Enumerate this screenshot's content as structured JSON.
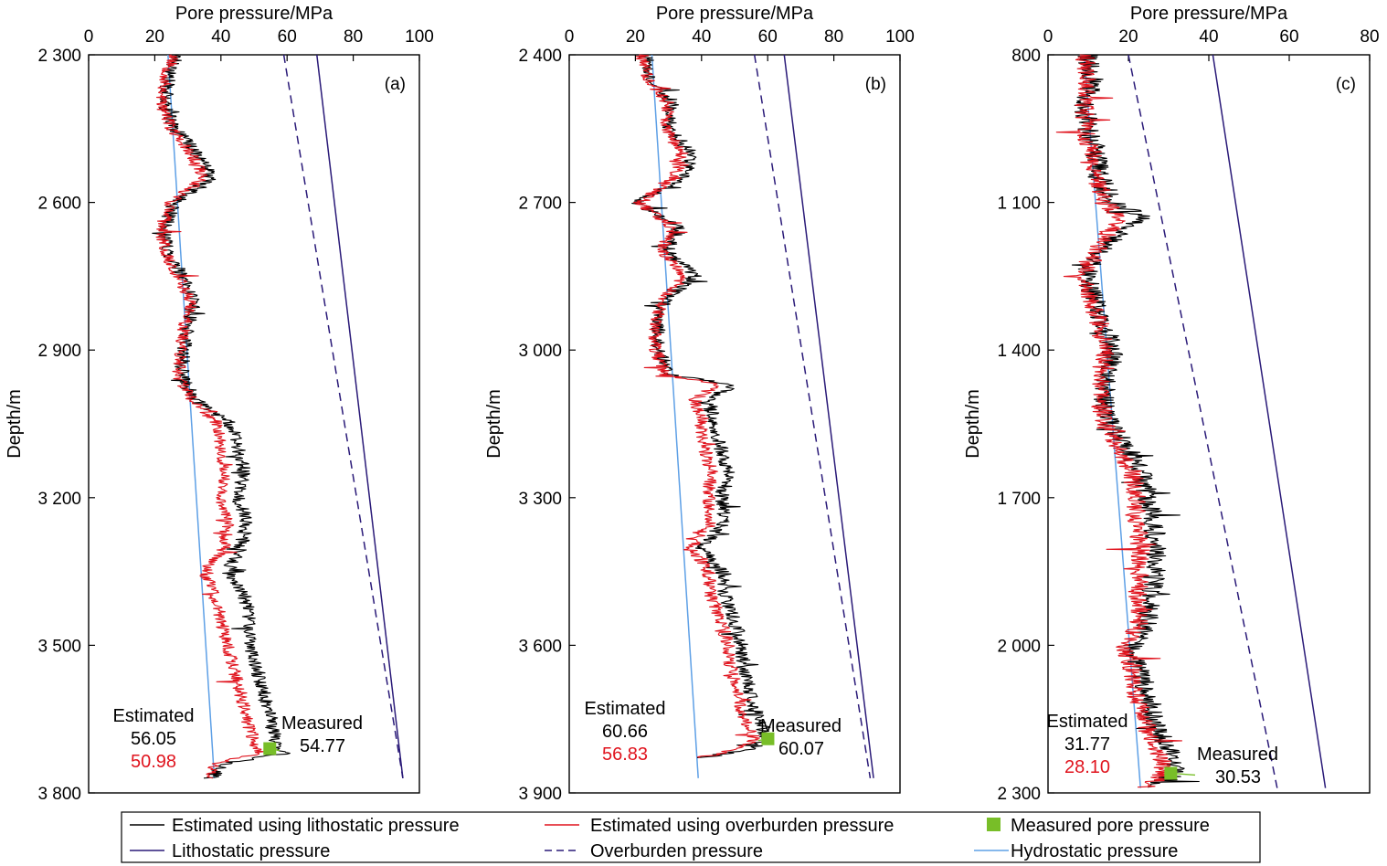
{
  "colors": {
    "estimated_lithostatic": "#000000",
    "estimated_overburden": "#e0141e",
    "measured": "#78be28",
    "lithostatic": "#2a1a78",
    "overburden": "#2a1a78",
    "hydrostatic": "#5ea0e6"
  },
  "legend": [
    {
      "label": "Estimated using lithostatic pressure",
      "kind": "line",
      "color_key": "estimated_lithostatic"
    },
    {
      "label": "Estimated using overburden pressure",
      "kind": "line",
      "color_key": "estimated_overburden"
    },
    {
      "label": "Measured pore pressure",
      "kind": "square",
      "color_key": "measured"
    },
    {
      "label": "Lithostatic pressure",
      "kind": "line",
      "color_key": "lithostatic"
    },
    {
      "label": "Overburden pressure",
      "kind": "dash",
      "color_key": "overburden"
    },
    {
      "label": "Hydrostatic pressure",
      "kind": "line",
      "color_key": "hydrostatic"
    }
  ],
  "chart_data": [
    {
      "type": "line",
      "panel_label": "(a)",
      "xlabel": "Pore pressure/MPa",
      "ylabel": "Depth/m",
      "xlim": [
        0,
        100
      ],
      "ylim": [
        2300,
        3800
      ],
      "xticks": [
        0,
        20,
        40,
        60,
        80,
        100
      ],
      "xtick_labels": [
        "0",
        "20",
        "40",
        "60",
        "80",
        "100"
      ],
      "yticks": [
        2300,
        2600,
        2900,
        3200,
        3500,
        3800
      ],
      "ytick_labels": [
        "2 300",
        "2 600",
        "2 900",
        "3 200",
        "3 500",
        "3 800"
      ],
      "lithostatic": [
        [
          69,
          2300
        ],
        [
          95,
          3770
        ]
      ],
      "overburden": [
        [
          59,
          2300
        ],
        [
          95,
          3770
        ]
      ],
      "hydrostatic": [
        [
          24,
          2300
        ],
        [
          38,
          3770
        ]
      ],
      "est_lithostatic_profile": [
        [
          2300,
          27
        ],
        [
          2350,
          24
        ],
        [
          2400,
          23
        ],
        [
          2450,
          26
        ],
        [
          2500,
          33
        ],
        [
          2550,
          37
        ],
        [
          2600,
          26
        ],
        [
          2650,
          23
        ],
        [
          2700,
          24
        ],
        [
          2750,
          28
        ],
        [
          2800,
          32
        ],
        [
          2850,
          30
        ],
        [
          2900,
          29
        ],
        [
          2950,
          28
        ],
        [
          3000,
          32
        ],
        [
          3050,
          43
        ],
        [
          3100,
          45
        ],
        [
          3150,
          47
        ],
        [
          3200,
          45
        ],
        [
          3250,
          48
        ],
        [
          3300,
          46
        ],
        [
          3350,
          42
        ],
        [
          3400,
          47
        ],
        [
          3450,
          49
        ],
        [
          3500,
          49
        ],
        [
          3550,
          51
        ],
        [
          3600,
          53
        ],
        [
          3650,
          55
        ],
        [
          3700,
          57
        ],
        [
          3720,
          59
        ],
        [
          3740,
          41
        ],
        [
          3770,
          37
        ]
      ],
      "est_overburden_profile": [
        [
          2300,
          26
        ],
        [
          2350,
          23
        ],
        [
          2400,
          22
        ],
        [
          2450,
          25
        ],
        [
          2500,
          31
        ],
        [
          2550,
          35
        ],
        [
          2600,
          25
        ],
        [
          2650,
          22
        ],
        [
          2700,
          23
        ],
        [
          2750,
          27
        ],
        [
          2800,
          31
        ],
        [
          2850,
          29
        ],
        [
          2900,
          28
        ],
        [
          2950,
          27
        ],
        [
          3000,
          31
        ],
        [
          3050,
          39
        ],
        [
          3100,
          40
        ],
        [
          3150,
          41
        ],
        [
          3200,
          40
        ],
        [
          3250,
          42
        ],
        [
          3300,
          41
        ],
        [
          3350,
          35
        ],
        [
          3400,
          38
        ],
        [
          3450,
          40
        ],
        [
          3500,
          42
        ],
        [
          3550,
          44
        ],
        [
          3600,
          46
        ],
        [
          3650,
          48
        ],
        [
          3700,
          50
        ],
        [
          3720,
          52
        ],
        [
          3740,
          38
        ],
        [
          3770,
          36
        ]
      ],
      "measured_point": {
        "x": 54.77,
        "y": 3710
      },
      "measured_label": "Measured",
      "measured_value": "54.77",
      "estimated_label": "Estimated",
      "estimated_values": [
        "56.05",
        "50.98"
      ]
    },
    {
      "type": "line",
      "panel_label": "(b)",
      "xlabel": "Pore pressure/MPa",
      "ylabel": "Depth/m",
      "xlim": [
        0,
        100
      ],
      "ylim": [
        2400,
        3900
      ],
      "xticks": [
        0,
        20,
        40,
        60,
        80,
        100
      ],
      "xtick_labels": [
        "0",
        "20",
        "40",
        "60",
        "80",
        "100"
      ],
      "yticks": [
        2400,
        2700,
        3000,
        3300,
        3600,
        3900
      ],
      "ytick_labels": [
        "2 400",
        "2 700",
        "3 000",
        "3 300",
        "3 600",
        "3 900"
      ],
      "lithostatic": [
        [
          65,
          2400
        ],
        [
          92,
          3870
        ]
      ],
      "overburden": [
        [
          56,
          2400
        ],
        [
          91,
          3870
        ]
      ],
      "hydrostatic": [
        [
          25,
          2400
        ],
        [
          39,
          3870
        ]
      ],
      "est_lithostatic_profile": [
        [
          2400,
          23
        ],
        [
          2450,
          25
        ],
        [
          2500,
          31
        ],
        [
          2550,
          30
        ],
        [
          2600,
          37
        ],
        [
          2650,
          35
        ],
        [
          2700,
          20
        ],
        [
          2750,
          33
        ],
        [
          2800,
          30
        ],
        [
          2850,
          38
        ],
        [
          2900,
          29
        ],
        [
          2950,
          27
        ],
        [
          3000,
          27
        ],
        [
          3050,
          30
        ],
        [
          3070,
          50
        ],
        [
          3100,
          42
        ],
        [
          3150,
          44
        ],
        [
          3200,
          46
        ],
        [
          3250,
          48
        ],
        [
          3300,
          46
        ],
        [
          3350,
          47
        ],
        [
          3400,
          40
        ],
        [
          3450,
          46
        ],
        [
          3500,
          47
        ],
        [
          3550,
          50
        ],
        [
          3600,
          52
        ],
        [
          3650,
          53
        ],
        [
          3700,
          55
        ],
        [
          3750,
          57
        ],
        [
          3790,
          60
        ],
        [
          3810,
          55
        ],
        [
          3830,
          39
        ]
      ],
      "est_overburden_profile": [
        [
          2400,
          22
        ],
        [
          2450,
          24
        ],
        [
          2500,
          30
        ],
        [
          2550,
          29
        ],
        [
          2600,
          34
        ],
        [
          2650,
          32
        ],
        [
          2700,
          21
        ],
        [
          2750,
          31
        ],
        [
          2800,
          28
        ],
        [
          2850,
          35
        ],
        [
          2900,
          28
        ],
        [
          2950,
          26
        ],
        [
          3000,
          26
        ],
        [
          3050,
          29
        ],
        [
          3070,
          45
        ],
        [
          3100,
          38
        ],
        [
          3150,
          40
        ],
        [
          3200,
          41
        ],
        [
          3250,
          43
        ],
        [
          3300,
          42
        ],
        [
          3350,
          43
        ],
        [
          3400,
          37
        ],
        [
          3450,
          42
        ],
        [
          3500,
          43
        ],
        [
          3550,
          46
        ],
        [
          3600,
          48
        ],
        [
          3650,
          49
        ],
        [
          3700,
          51
        ],
        [
          3750,
          53
        ],
        [
          3790,
          56
        ],
        [
          3810,
          52
        ],
        [
          3830,
          38
        ]
      ],
      "measured_point": {
        "x": 60.07,
        "y": 3790
      },
      "measured_label": "Measured",
      "measured_value": "60.07",
      "estimated_label": "Estimated",
      "estimated_values": [
        "60.66",
        "56.83"
      ]
    },
    {
      "type": "line",
      "panel_label": "(c)",
      "xlabel": "Pore pressure/MPa",
      "ylabel": "Depth/m",
      "xlim": [
        0,
        80
      ],
      "ylim": [
        800,
        2300
      ],
      "xticks": [
        0,
        20,
        40,
        60,
        80
      ],
      "xtick_labels": [
        "0",
        "20",
        "40",
        "60",
        "80"
      ],
      "yticks": [
        800,
        1100,
        1400,
        1700,
        2000,
        2300
      ],
      "ytick_labels": [
        "800",
        "1 100",
        "1 400",
        "1 700",
        "2 000",
        "2 300"
      ],
      "lithostatic": [
        [
          41,
          800
        ],
        [
          69,
          2290
        ]
      ],
      "overburden": [
        [
          20,
          800
        ],
        [
          57,
          2290
        ]
      ],
      "hydrostatic": [
        [
          9,
          800
        ],
        [
          23,
          2290
        ]
      ],
      "est_lithostatic_profile": [
        [
          800,
          10
        ],
        [
          850,
          11
        ],
        [
          900,
          9
        ],
        [
          950,
          10
        ],
        [
          1000,
          12
        ],
        [
          1050,
          13
        ],
        [
          1100,
          16
        ],
        [
          1130,
          24
        ],
        [
          1150,
          19
        ],
        [
          1200,
          13
        ],
        [
          1250,
          9
        ],
        [
          1300,
          12
        ],
        [
          1350,
          14
        ],
        [
          1400,
          16
        ],
        [
          1450,
          15
        ],
        [
          1500,
          14
        ],
        [
          1550,
          15
        ],
        [
          1600,
          20
        ],
        [
          1650,
          23
        ],
        [
          1700,
          25
        ],
        [
          1750,
          26
        ],
        [
          1800,
          27
        ],
        [
          1850,
          27
        ],
        [
          1900,
          25
        ],
        [
          1950,
          25
        ],
        [
          2000,
          21
        ],
        [
          2050,
          23
        ],
        [
          2100,
          25
        ],
        [
          2150,
          26
        ],
        [
          2200,
          29
        ],
        [
          2230,
          31
        ],
        [
          2260,
          32
        ],
        [
          2290,
          26
        ]
      ],
      "est_overburden_profile": [
        [
          800,
          9
        ],
        [
          850,
          10
        ],
        [
          900,
          9
        ],
        [
          950,
          9
        ],
        [
          1000,
          11
        ],
        [
          1050,
          12
        ],
        [
          1100,
          14
        ],
        [
          1130,
          18
        ],
        [
          1150,
          16
        ],
        [
          1200,
          12
        ],
        [
          1250,
          9
        ],
        [
          1300,
          11
        ],
        [
          1350,
          13
        ],
        [
          1400,
          14
        ],
        [
          1450,
          13
        ],
        [
          1500,
          13
        ],
        [
          1550,
          14
        ],
        [
          1600,
          18
        ],
        [
          1650,
          21
        ],
        [
          1700,
          22
        ],
        [
          1750,
          22
        ],
        [
          1800,
          23
        ],
        [
          1850,
          23
        ],
        [
          1900,
          22
        ],
        [
          1950,
          23
        ],
        [
          2000,
          19
        ],
        [
          2050,
          21
        ],
        [
          2100,
          22
        ],
        [
          2150,
          24
        ],
        [
          2200,
          26
        ],
        [
          2230,
          28
        ],
        [
          2260,
          29
        ],
        [
          2290,
          24
        ]
      ],
      "measured_point": {
        "x": 30.53,
        "y": 2260
      },
      "measured_label": "Measured",
      "measured_value": "30.53",
      "estimated_label": "Estimated",
      "estimated_values": [
        "31.77",
        "28.10"
      ]
    }
  ]
}
